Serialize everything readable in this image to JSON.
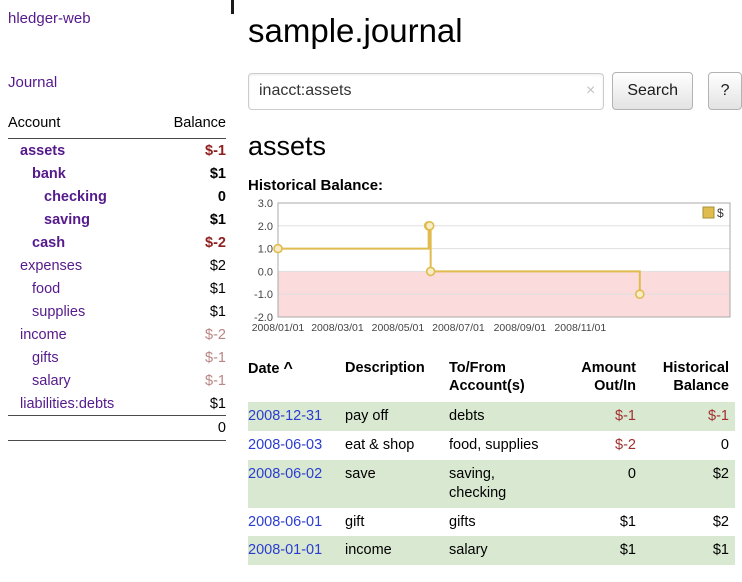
{
  "sidebar": {
    "app_title": "hledger-web",
    "journal_link": "Journal",
    "accounts_table": {
      "headers": {
        "account": "Account",
        "balance": "Balance"
      },
      "rows": [
        {
          "name": "assets",
          "balance": "$-1",
          "indent": 0,
          "bold": true,
          "negative": true
        },
        {
          "name": "bank",
          "balance": "$1",
          "indent": 1,
          "bold": true,
          "negative": false
        },
        {
          "name": "checking",
          "balance": "0",
          "indent": 2,
          "bold": true,
          "negative": false
        },
        {
          "name": "saving",
          "balance": "$1",
          "indent": 2,
          "bold": true,
          "negative": false
        },
        {
          "name": "cash",
          "balance": "$-2",
          "indent": 1,
          "bold": true,
          "negative": true
        },
        {
          "name": "expenses",
          "balance": "$2",
          "indent": 0,
          "bold": false,
          "negative": false
        },
        {
          "name": "food",
          "balance": "$1",
          "indent": 1,
          "bold": false,
          "negative": false
        },
        {
          "name": "supplies",
          "balance": "$1",
          "indent": 1,
          "bold": false,
          "negative": false
        },
        {
          "name": "income",
          "balance": "$-2",
          "indent": 0,
          "bold": false,
          "negative": true
        },
        {
          "name": "gifts",
          "balance": "$-1",
          "indent": 1,
          "bold": false,
          "negative": true
        },
        {
          "name": "salary",
          "balance": "$-1",
          "indent": 1,
          "bold": false,
          "negative": true
        },
        {
          "name": "liabilities:debts",
          "balance": "$1",
          "indent": 0,
          "bold": false,
          "negative": false
        }
      ],
      "total": "0"
    }
  },
  "header": {
    "title": "sample.journal"
  },
  "search": {
    "value": "inacct:assets",
    "clear_icon": "×",
    "button": "Search",
    "help_button": "?"
  },
  "register": {
    "account_title": "assets",
    "chart_label": "Historical Balance:",
    "table": {
      "headers": {
        "date": "Date",
        "sort_icon": "^",
        "description": "Description",
        "tofrom": "To/From Account(s)",
        "amount": "Amount Out/In",
        "balance": "Historical Balance"
      },
      "rows": [
        {
          "date": "2008-12-31",
          "description": "pay off",
          "accounts": "debts",
          "amount": "$-1",
          "balance": "$-1",
          "amount_neg": true,
          "balance_neg": true,
          "shaded": true
        },
        {
          "date": "2008-06-03",
          "description": "eat & shop",
          "accounts": "food, supplies",
          "amount": "$-2",
          "balance": "0",
          "amount_neg": true,
          "balance_neg": false,
          "shaded": false
        },
        {
          "date": "2008-06-02",
          "description": "save",
          "accounts": "saving, checking",
          "amount": "0",
          "balance": "$2",
          "amount_neg": false,
          "balance_neg": false,
          "shaded": true
        },
        {
          "date": "2008-06-01",
          "description": "gift",
          "accounts": "gifts",
          "amount": "$1",
          "balance": "$2",
          "amount_neg": false,
          "balance_neg": false,
          "shaded": false
        },
        {
          "date": "2008-01-01",
          "description": "income",
          "accounts": "salary",
          "amount": "$1",
          "balance": "$1",
          "amount_neg": false,
          "balance_neg": false,
          "shaded": true
        }
      ]
    }
  },
  "chart_data": {
    "type": "line",
    "step": true,
    "title": "Historical Balance:",
    "xlabel": "",
    "ylabel": "",
    "ylim": [
      -2.0,
      3.0
    ],
    "y_ticks": [
      3.0,
      2.0,
      1.0,
      0.0,
      -1.0,
      -2.0
    ],
    "x_domain": [
      "2008-01-01",
      "2009-04-01"
    ],
    "x_ticks": [
      {
        "date": "2008-01-01",
        "label": "2008/01/01"
      },
      {
        "date": "2008-03-01",
        "label": "2008/03/01"
      },
      {
        "date": "2008-05-01",
        "label": "2008/05/01"
      },
      {
        "date": "2008-07-01",
        "label": "2008/07/01"
      },
      {
        "date": "2008-09-01",
        "label": "2008/09/01"
      },
      {
        "date": "2008-11-01",
        "label": "2008/11/01"
      }
    ],
    "series": [
      {
        "name": "$",
        "points": [
          {
            "date": "2008-01-01",
            "value": 1
          },
          {
            "date": "2008-06-01",
            "value": 2
          },
          {
            "date": "2008-06-02",
            "value": 2
          },
          {
            "date": "2008-06-03",
            "value": 0
          },
          {
            "date": "2008-12-31",
            "value": -1
          }
        ]
      }
    ],
    "legend_position": "top-right",
    "grid": true,
    "line_color": "#e0bb4d",
    "marker_fill": "#f7edc8",
    "negative_region_fill": "#fbdbdb",
    "grid_color": "#e0e0e0",
    "border_color": "#aaaaaa"
  }
}
